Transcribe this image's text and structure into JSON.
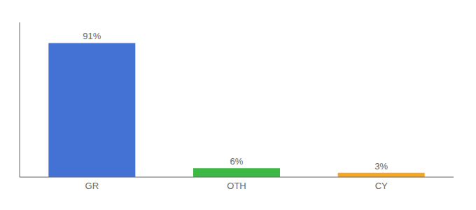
{
  "chart_data": {
    "type": "bar",
    "categories": [
      "GR",
      "OTH",
      "CY"
    ],
    "values": [
      91,
      6,
      3
    ],
    "value_labels": [
      "91%",
      "6%",
      "3%"
    ],
    "colors": [
      "#4472d4",
      "#3cb844",
      "#f5a623"
    ],
    "ylim": [
      0,
      105
    ],
    "yticks": [],
    "data_labels": true,
    "tick_labels": "x",
    "grid": false
  }
}
